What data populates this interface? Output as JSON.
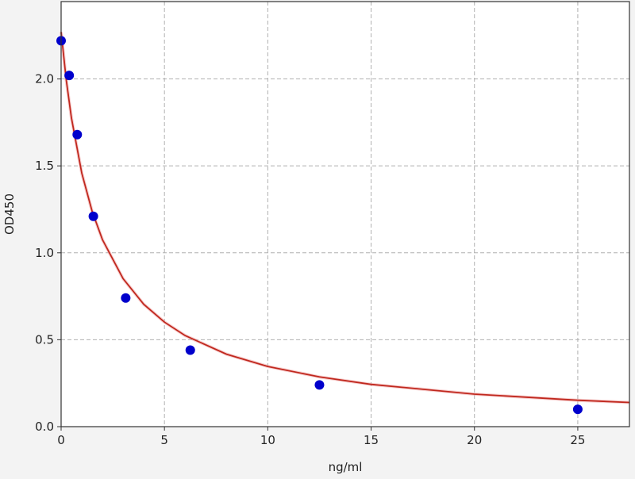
{
  "chart_data": {
    "type": "scatter",
    "title": "",
    "xlabel": "ng/ml",
    "ylabel": "OD450",
    "xlim": [
      0,
      27.5
    ],
    "ylim": [
      0,
      2.445
    ],
    "xticks": [
      0,
      5,
      10,
      15,
      20,
      25
    ],
    "xtick_labels": [
      "0",
      "5",
      "10",
      "15",
      "20",
      "25"
    ],
    "yticks": [
      0,
      0.5,
      1.0,
      1.5,
      2.0
    ],
    "ytick_labels": [
      "0.0",
      "0.5",
      "1.0",
      "1.5",
      "2.0"
    ],
    "grid": true,
    "series": [
      {
        "type": "scatter",
        "color": "#0000cc",
        "x": [
          0,
          0.39,
          0.78,
          1.56,
          3.125,
          6.25,
          12.5,
          25
        ],
        "y": [
          2.22,
          2.02,
          1.68,
          1.21,
          0.74,
          0.44,
          0.24,
          0.1
        ]
      },
      {
        "type": "line",
        "color": "#c0281e",
        "x": [
          0,
          0.25,
          0.5,
          1,
          1.5,
          2,
          3,
          4,
          5,
          6,
          8,
          10,
          12.5,
          15,
          20,
          25,
          27.5
        ],
        "y": [
          2.27,
          1.993,
          1.776,
          1.459,
          1.238,
          1.075,
          0.851,
          0.704,
          0.601,
          0.524,
          0.417,
          0.346,
          0.286,
          0.243,
          0.187,
          0.152,
          0.139
        ]
      }
    ]
  }
}
